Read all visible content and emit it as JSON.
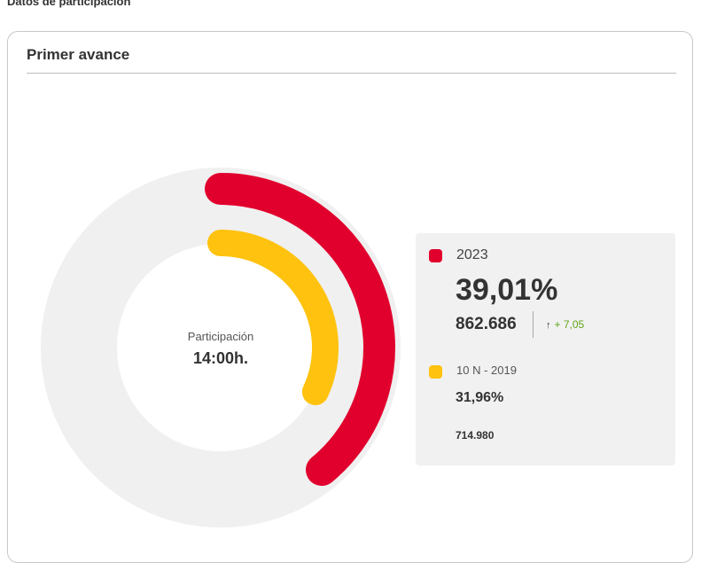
{
  "section_title": "Datos de participación",
  "card_title": "Primer avance",
  "center": {
    "label": "Participación",
    "time": "14:00h."
  },
  "legend": {
    "current": {
      "year": "2023",
      "percent": "39,01%",
      "votes": "862.686",
      "arrow": "↑",
      "change": "+ 7,05"
    },
    "previous": {
      "year": "10 N - 2019",
      "percent": "31,96%",
      "votes": "714.980"
    }
  },
  "colors": {
    "current": "#e1002d",
    "previous": "#ffc20e",
    "track": "#f0f0f0"
  },
  "chart_data": {
    "type": "radial_bar",
    "series": [
      {
        "name": "2023",
        "value": 39.01,
        "color": "#e1002d"
      },
      {
        "name": "10 N - 2019",
        "value": 31.96,
        "color": "#ffc20e"
      }
    ],
    "max": 100
  }
}
